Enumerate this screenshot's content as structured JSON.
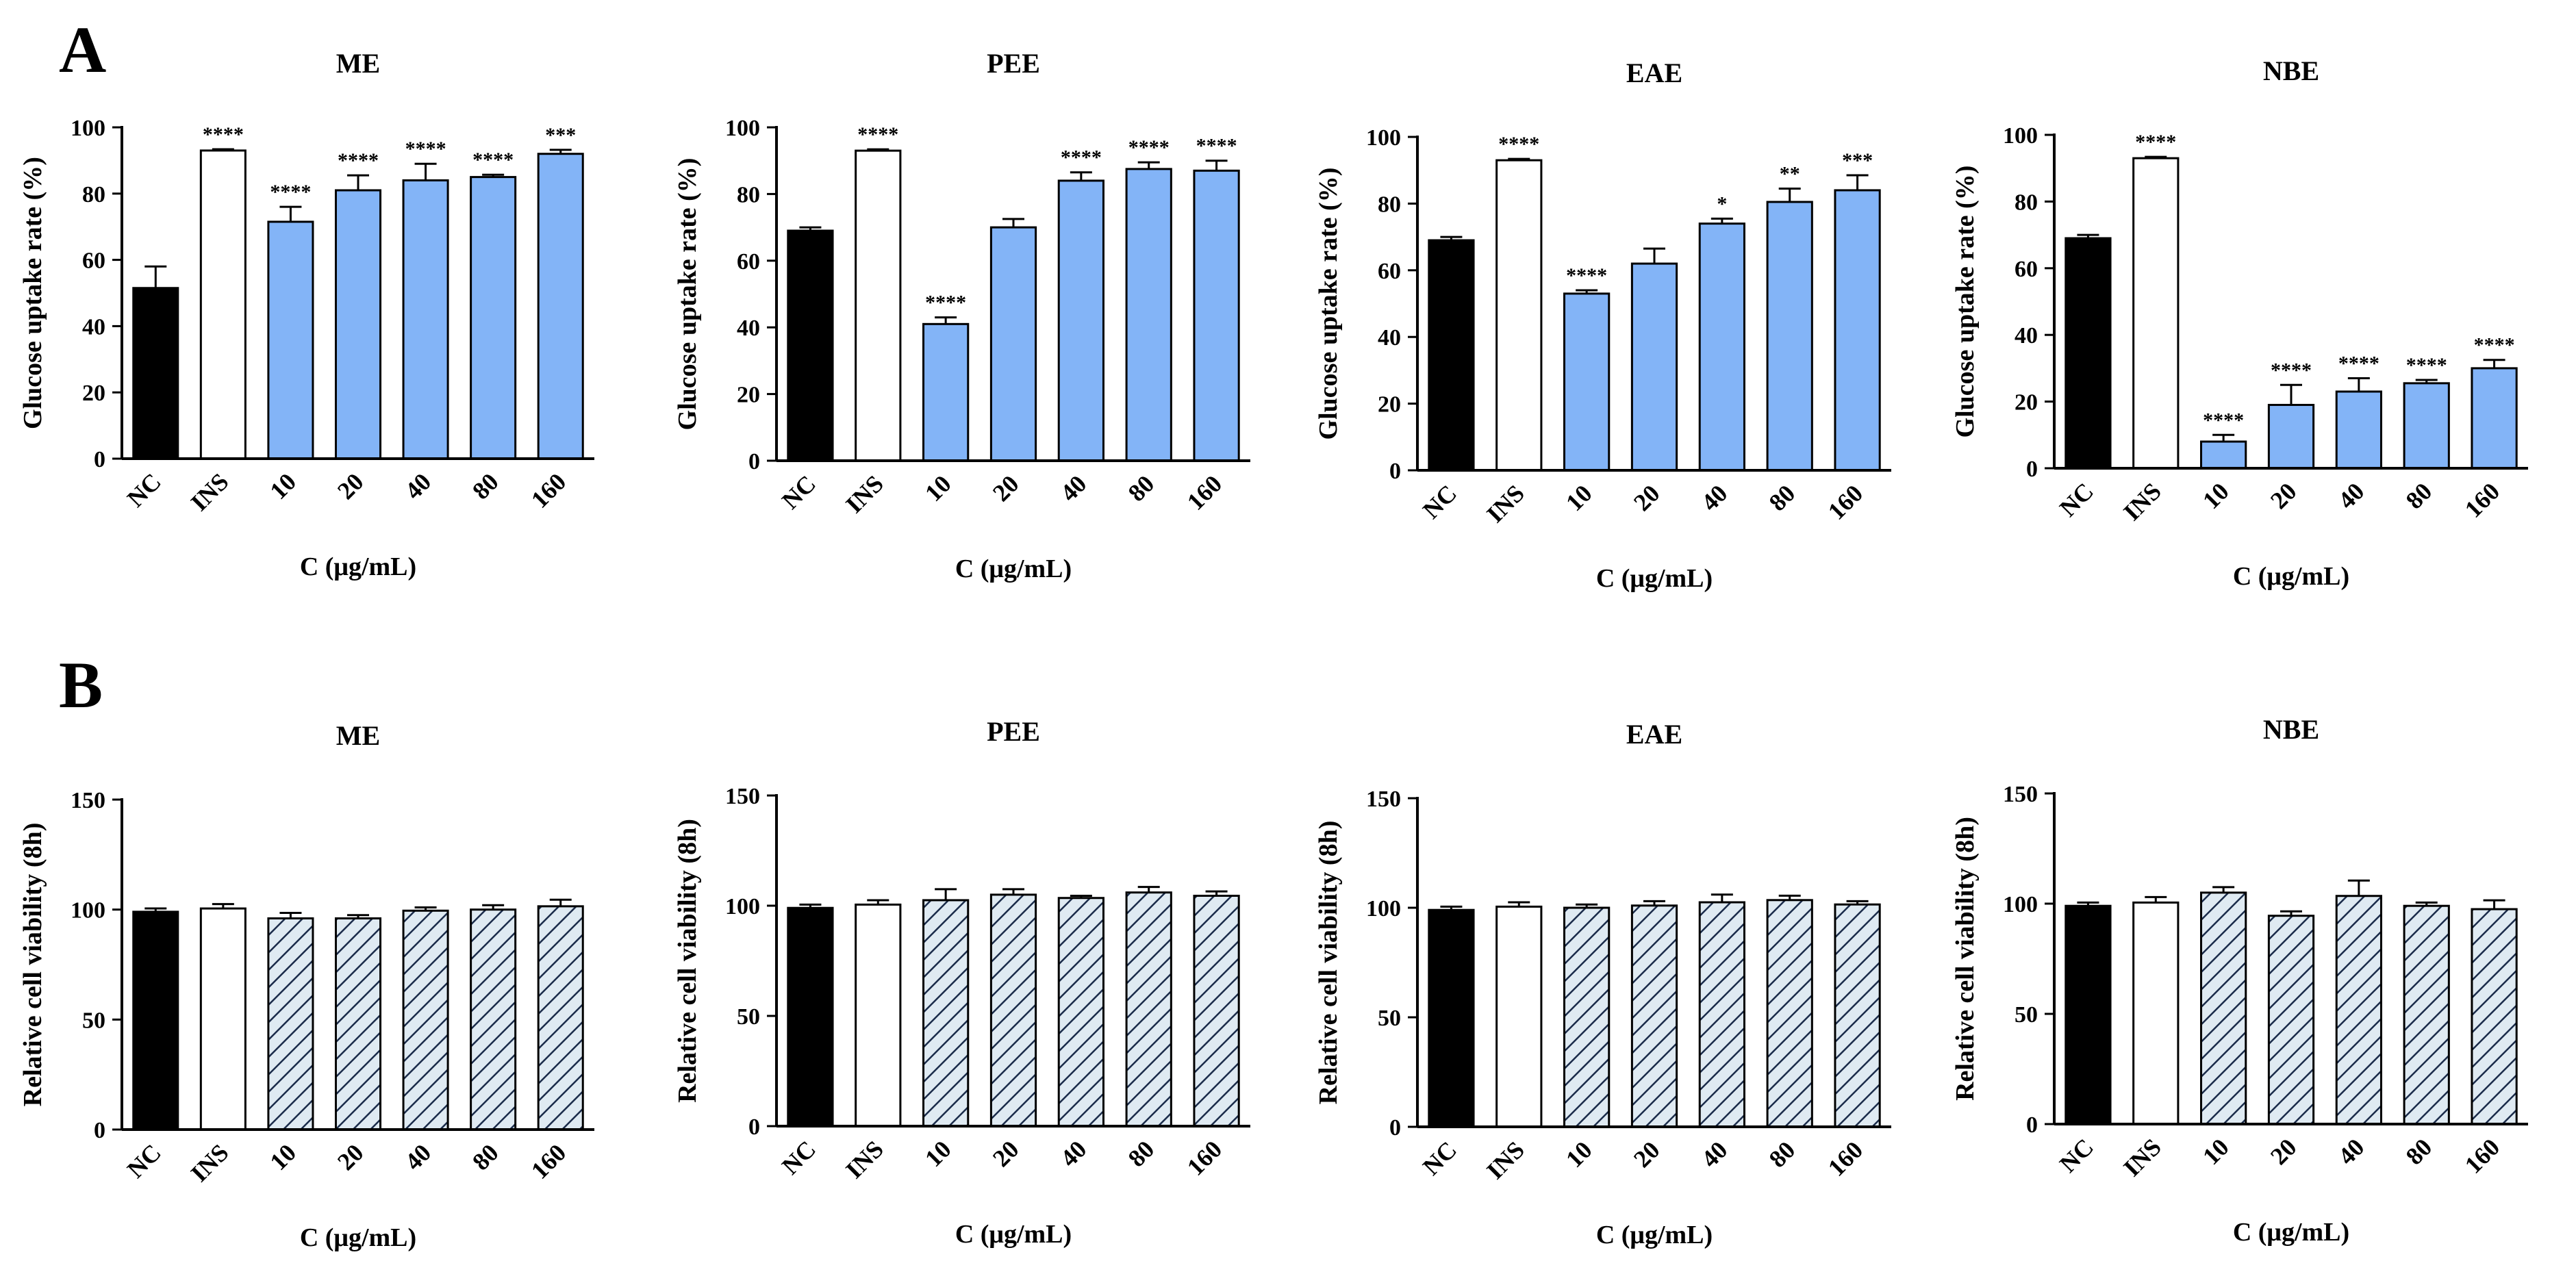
{
  "panel_labels": [
    "A",
    "B"
  ],
  "colors": {
    "nc": "#000000",
    "ins": "#ffffff",
    "extract_fill": "#83b4f7",
    "hatch_bg": "#dfeaf2",
    "hatch_line": "#1a2b4a"
  },
  "chart_data": [
    {
      "type": "bar",
      "title": "ME",
      "xlabel": "C (μg/mL)",
      "ylabel": "Glucose uptake rate (%)",
      "categories": [
        "NC",
        "INS",
        "10",
        "20",
        "40",
        "80",
        "160"
      ],
      "values": [
        51.5,
        93,
        71.5,
        81,
        84,
        85,
        92
      ],
      "errors": [
        6.5,
        0.4,
        4.5,
        4.5,
        5,
        0.7,
        1.2
      ],
      "significance": [
        "",
        "****",
        "****",
        "****",
        "****",
        "****",
        "***"
      ],
      "ylim": [
        0,
        100
      ],
      "yticks": [
        "0",
        "20",
        "40",
        "60",
        "80",
        "100"
      ],
      "style": "solid"
    },
    {
      "type": "bar",
      "title": "PEE",
      "xlabel": "C (μg/mL)",
      "ylabel": "Glucose uptake rate (%)",
      "categories": [
        "NC",
        "INS",
        "10",
        "20",
        "40",
        "80",
        "160"
      ],
      "values": [
        69,
        93,
        41,
        70,
        84,
        87.5,
        87
      ],
      "errors": [
        1,
        0.4,
        2,
        2.5,
        2.5,
        2,
        3
      ],
      "significance": [
        "",
        "****",
        "****",
        "",
        "****",
        "****",
        "****"
      ],
      "ylim": [
        0,
        100
      ],
      "yticks": [
        "0",
        "20",
        "40",
        "60",
        "80",
        "100"
      ],
      "style": "solid"
    },
    {
      "type": "bar",
      "title": "EAE",
      "xlabel": "C (μg/mL)",
      "ylabel": "Glucose uptake rate (%)",
      "categories": [
        "NC",
        "INS",
        "10",
        "20",
        "40",
        "80",
        "160"
      ],
      "values": [
        69,
        93,
        53,
        62,
        74,
        80.5,
        84
      ],
      "errors": [
        1,
        0.4,
        1,
        4.5,
        1.5,
        4,
        4.5
      ],
      "significance": [
        "",
        "****",
        "****",
        "",
        "*",
        "**",
        "***"
      ],
      "ylim": [
        0,
        100
      ],
      "yticks": [
        "0",
        "20",
        "40",
        "60",
        "80",
        "100"
      ],
      "style": "solid"
    },
    {
      "type": "bar",
      "title": "NBE",
      "xlabel": "C (μg/mL)",
      "ylabel": "Glucose uptake rate (%)",
      "categories": [
        "NC",
        "INS",
        "10",
        "20",
        "40",
        "80",
        "160"
      ],
      "values": [
        69,
        93,
        8,
        19,
        23,
        25.5,
        30
      ],
      "errors": [
        1,
        0.4,
        2,
        6,
        4,
        1,
        2.5
      ],
      "significance": [
        "",
        "****",
        "****",
        "****",
        "****",
        "****",
        "****"
      ],
      "ylim": [
        0,
        100
      ],
      "yticks": [
        "0",
        "20",
        "40",
        "60",
        "80",
        "100"
      ],
      "style": "solid"
    },
    {
      "type": "bar",
      "title": "ME",
      "xlabel": "C (μg/mL)",
      "ylabel": "Relative cell viability (8h)",
      "categories": [
        "NC",
        "INS",
        "10",
        "20",
        "40",
        "80",
        "160"
      ],
      "values": [
        99,
        100.5,
        96,
        96,
        99.5,
        100,
        101.5
      ],
      "errors": [
        1.5,
        2,
        2.5,
        1.5,
        1.5,
        2,
        3
      ],
      "significance": [
        "",
        "",
        "",
        "",
        "",
        "",
        ""
      ],
      "ylim": [
        0,
        150
      ],
      "yticks": [
        "0",
        "50",
        "100",
        "150"
      ],
      "style": "hatched"
    },
    {
      "type": "bar",
      "title": "PEE",
      "xlabel": "C (μg/mL)",
      "ylabel": "Relative cell viability (8h)",
      "categories": [
        "NC",
        "INS",
        "10",
        "20",
        "40",
        "80",
        "160"
      ],
      "values": [
        99,
        100.5,
        102.5,
        105,
        103.5,
        106,
        104.5
      ],
      "errors": [
        1.5,
        2,
        5,
        2.5,
        1,
        2.5,
        2
      ],
      "significance": [
        "",
        "",
        "",
        "",
        "",
        "",
        ""
      ],
      "ylim": [
        0,
        150
      ],
      "yticks": [
        "0",
        "50",
        "100",
        "150"
      ],
      "style": "hatched"
    },
    {
      "type": "bar",
      "title": "EAE",
      "xlabel": "C (μg/mL)",
      "ylabel": "Relative cell viability (8h)",
      "categories": [
        "NC",
        "INS",
        "10",
        "20",
        "40",
        "80",
        "160"
      ],
      "values": [
        99,
        100.5,
        100,
        101,
        102.5,
        103.5,
        101.5
      ],
      "errors": [
        1.5,
        2,
        1.5,
        2,
        3.5,
        2,
        1.5
      ],
      "significance": [
        "",
        "",
        "",
        "",
        "",
        "",
        ""
      ],
      "ylim": [
        0,
        150
      ],
      "yticks": [
        "0",
        "50",
        "100",
        "150"
      ],
      "style": "hatched"
    },
    {
      "type": "bar",
      "title": "NBE",
      "xlabel": "C (μg/mL)",
      "ylabel": "Relative cell viability (8h)",
      "categories": [
        "NC",
        "INS",
        "10",
        "20",
        "40",
        "80",
        "160"
      ],
      "values": [
        99,
        100.5,
        105,
        94.5,
        103.5,
        99,
        97.5
      ],
      "errors": [
        1.5,
        2.5,
        2.5,
        2,
        7,
        1.5,
        4
      ],
      "significance": [
        "",
        "",
        "",
        "",
        "",
        "",
        ""
      ],
      "ylim": [
        0,
        150
      ],
      "yticks": [
        "0",
        "50",
        "100",
        "150"
      ],
      "style": "hatched"
    }
  ]
}
